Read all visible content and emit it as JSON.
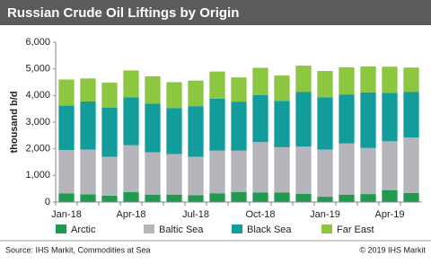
{
  "chart_data": {
    "type": "stacked_bar",
    "title": "Russian Crude Oil Liftings by Origin",
    "y_label": "thousand b/d",
    "categories": [
      "Jan-18",
      null,
      null,
      "Apr-18",
      null,
      null,
      "Jul-18",
      null,
      null,
      "Oct-18",
      null,
      null,
      "Jan-19",
      null,
      null,
      "Apr-19",
      null
    ],
    "series": [
      {
        "name": "Arctic",
        "color": "#1f9a4e",
        "values": [
          320,
          290,
          240,
          370,
          280,
          280,
          260,
          330,
          380,
          360,
          360,
          310,
          200,
          280,
          300,
          450,
          340
        ]
      },
      {
        "name": "Baltic Sea",
        "color": "#b5b5bb",
        "values": [
          1630,
          1680,
          1460,
          1760,
          1590,
          1520,
          1440,
          1600,
          1550,
          1890,
          1700,
          1770,
          1770,
          1920,
          1730,
          1830,
          2080
        ]
      },
      {
        "name": "Black Sea",
        "color": "#129c9c",
        "values": [
          1670,
          1810,
          1840,
          1800,
          1830,
          1730,
          1900,
          1950,
          1840,
          1770,
          1740,
          2050,
          1960,
          1840,
          2090,
          1820,
          1710
        ]
      },
      {
        "name": "Far East",
        "color": "#8dc641",
        "values": [
          980,
          860,
          940,
          1010,
          1020,
          970,
          960,
          1020,
          910,
          1020,
          950,
          990,
          990,
          1020,
          970,
          980,
          920
        ]
      }
    ],
    "ylim": [
      0,
      6000
    ],
    "yticks": [
      0,
      {
        "value": 1000,
        "label": "1,000"
      },
      {
        "value": 2000,
        "label": "2,000"
      },
      {
        "value": 3000,
        "label": "3,000"
      },
      {
        "value": 4000,
        "label": "4,000"
      },
      {
        "value": 5000,
        "label": "5,000"
      },
      {
        "value": 6000,
        "label": "6,000"
      }
    ],
    "grid": false,
    "legend": "bottom",
    "source": "Source: IHS Markit, Commodities at Sea",
    "copyright": "© 2019 IHS Markit"
  }
}
